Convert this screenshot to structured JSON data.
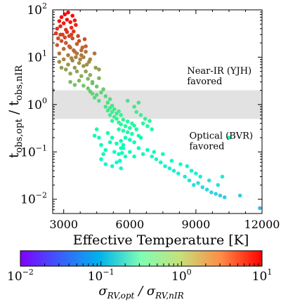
{
  "chart_data": {
    "type": "scatter",
    "xlabel": "Effective Temperature [K]",
    "ylabel": "t_obs,opt / t_obs,nIR",
    "xlim": [
      2500,
      12000
    ],
    "ylim": [
      0.005,
      100
    ],
    "xscale": "linear",
    "yscale": "log",
    "xticks": [
      3000,
      6000,
      9000,
      12000
    ],
    "yticks": [
      0.01,
      0.1,
      1,
      10,
      100
    ],
    "band": {
      "ymin": 0.5,
      "ymax": 2.0,
      "color": "#e2e2e2"
    },
    "annotations": [
      {
        "lines": [
          "Near-IR (YJH)",
          "favored"
        ],
        "x": 8600,
        "y": 4.5
      },
      {
        "lines": [
          "Optical (BVR)",
          "favored"
        ],
        "x": 8700,
        "y": 0.19
      }
    ],
    "colorbar": {
      "label": "σ_RV,opt / σ_RV,nIR",
      "scale": "log",
      "range": [
        0.01,
        10
      ],
      "colormap": "rainbow",
      "ticks": [
        0.01,
        0.1,
        1,
        10
      ],
      "tick_labels": [
        "10",
        "10",
        "10",
        "10"
      ],
      "tick_exponents": [
        "−2",
        "−1",
        "0",
        "1"
      ]
    },
    "points": [
      [
        2500,
        2.0
      ],
      [
        2650,
        32
      ],
      [
        2700,
        40
      ],
      [
        2750,
        25
      ],
      [
        2800,
        58
      ],
      [
        2850,
        45
      ],
      [
        2900,
        70
      ],
      [
        2950,
        30
      ],
      [
        3000,
        52
      ],
      [
        3050,
        80
      ],
      [
        3100,
        38
      ],
      [
        3150,
        62
      ],
      [
        3200,
        88
      ],
      [
        3250,
        28
      ],
      [
        3300,
        55
      ],
      [
        3350,
        42
      ],
      [
        3400,
        75
      ],
      [
        3450,
        35
      ],
      [
        3500,
        60
      ],
      [
        3550,
        48
      ],
      [
        2700,
        18
      ],
      [
        2800,
        12
      ],
      [
        2900,
        22
      ],
      [
        3000,
        15
      ],
      [
        3100,
        20
      ],
      [
        3200,
        11
      ],
      [
        3300,
        16
      ],
      [
        3400,
        25
      ],
      [
        3500,
        13
      ],
      [
        3600,
        19
      ],
      [
        3700,
        22
      ],
      [
        3800,
        14
      ],
      [
        3900,
        10
      ],
      [
        4000,
        17
      ],
      [
        3050,
        26
      ],
      [
        3350,
        30
      ],
      [
        3650,
        28
      ],
      [
        3950,
        24
      ],
      [
        2850,
        30
      ],
      [
        3150,
        34
      ],
      [
        2800,
        8
      ],
      [
        2900,
        6
      ],
      [
        3000,
        9
      ],
      [
        3100,
        5.5
      ],
      [
        3200,
        7
      ],
      [
        3300,
        4.5
      ],
      [
        3400,
        8.5
      ],
      [
        3500,
        6
      ],
      [
        3600,
        5
      ],
      [
        3700,
        7.5
      ],
      [
        3800,
        4
      ],
      [
        3900,
        6.5
      ],
      [
        4000,
        5
      ],
      [
        4100,
        3.5
      ],
      [
        4200,
        4.2
      ],
      [
        4300,
        3
      ],
      [
        3350,
        9.5
      ],
      [
        3750,
        9
      ],
      [
        4150,
        8
      ],
      [
        3550,
        10
      ],
      [
        3300,
        3.0
      ],
      [
        3500,
        2.6
      ],
      [
        3700,
        3.2
      ],
      [
        3900,
        2.5
      ],
      [
        4100,
        2.2
      ],
      [
        4300,
        2.8
      ],
      [
        4500,
        2.4
      ],
      [
        4600,
        3.6
      ],
      [
        4400,
        12
      ],
      [
        4200,
        1.9
      ],
      [
        4500,
        1.6
      ],
      [
        4700,
        1.8
      ],
      [
        4900,
        1.5
      ],
      [
        5100,
        1.3
      ],
      [
        4800,
        2.1
      ],
      [
        5000,
        1.1
      ],
      [
        5200,
        0.95
      ],
      [
        4600,
        1.2
      ],
      [
        4400,
        1.4
      ],
      [
        4300,
        1.7
      ],
      [
        4900,
        0.9
      ],
      [
        5000,
        0.75
      ],
      [
        5100,
        0.85
      ],
      [
        5200,
        0.7
      ],
      [
        5300,
        0.8
      ],
      [
        5400,
        0.65
      ],
      [
        5500,
        0.72
      ],
      [
        5100,
        0.6
      ],
      [
        5300,
        0.55
      ],
      [
        5600,
        0.6
      ],
      [
        5200,
        0.45
      ],
      [
        5400,
        0.5
      ],
      [
        5500,
        0.42
      ],
      [
        5600,
        0.38
      ],
      [
        5700,
        0.48
      ],
      [
        5800,
        0.35
      ],
      [
        5900,
        0.44
      ],
      [
        6000,
        0.32
      ],
      [
        6100,
        0.4
      ],
      [
        6200,
        0.36
      ],
      [
        5500,
        0.3
      ],
      [
        5700,
        0.28
      ],
      [
        5900,
        0.26
      ],
      [
        6100,
        0.24
      ],
      [
        6300,
        0.3
      ],
      [
        6400,
        0.22
      ],
      [
        6500,
        0.2
      ],
      [
        6000,
        0.18
      ],
      [
        5800,
        0.2
      ],
      [
        6200,
        0.16
      ],
      [
        6300,
        0.7
      ],
      [
        6500,
        0.6
      ],
      [
        6700,
        0.5
      ],
      [
        6900,
        0.45
      ],
      [
        6800,
        0.35
      ],
      [
        7000,
        0.3
      ],
      [
        6600,
        0.4
      ],
      [
        6200,
        0.9
      ],
      [
        5900,
        1.2
      ],
      [
        6400,
        1.1
      ],
      [
        5000,
        0.25
      ],
      [
        5200,
        0.2
      ],
      [
        5400,
        0.15
      ],
      [
        5600,
        0.12
      ],
      [
        5300,
        0.1
      ],
      [
        5500,
        0.09
      ],
      [
        5700,
        0.14
      ],
      [
        5100,
        0.16
      ],
      [
        4900,
        0.11
      ],
      [
        5800,
        0.08
      ],
      [
        4700,
        0.14
      ],
      [
        4800,
        0.09
      ],
      [
        4700,
        0.07
      ],
      [
        4900,
        0.055
      ],
      [
        5200,
        0.05
      ],
      [
        5400,
        0.06
      ],
      [
        5600,
        0.045
      ],
      [
        4600,
        0.2
      ],
      [
        4500,
        0.3
      ],
      [
        4400,
        0.22
      ],
      [
        5600,
        0.17
      ],
      [
        5700,
        0.12
      ],
      [
        5650,
        0.095
      ],
      [
        5550,
        0.065
      ],
      [
        6000,
        0.1
      ],
      [
        6200,
        0.08
      ],
      [
        6400,
        0.12
      ],
      [
        6600,
        0.09
      ],
      [
        6800,
        0.11
      ],
      [
        7000,
        0.08
      ],
      [
        7200,
        0.07
      ],
      [
        7400,
        0.06
      ],
      [
        7600,
        0.05
      ],
      [
        7800,
        0.045
      ],
      [
        8000,
        0.04
      ],
      [
        8200,
        0.035
      ],
      [
        7100,
        0.1
      ],
      [
        7500,
        0.09
      ],
      [
        7900,
        0.065
      ],
      [
        8300,
        0.055
      ],
      [
        8500,
        0.03
      ],
      [
        8700,
        0.025
      ],
      [
        8900,
        0.02
      ],
      [
        9100,
        0.022
      ],
      [
        9300,
        0.018
      ],
      [
        9500,
        0.016
      ],
      [
        9700,
        0.014
      ],
      [
        9900,
        0.013
      ],
      [
        10100,
        0.012
      ],
      [
        10300,
        0.011
      ],
      [
        8600,
        0.05
      ],
      [
        8800,
        0.04
      ],
      [
        9000,
        0.035
      ],
      [
        9200,
        0.03
      ],
      [
        9600,
        0.025
      ],
      [
        10000,
        0.02
      ],
      [
        10500,
        0.2
      ],
      [
        10200,
        0.03
      ],
      [
        11000,
        0.012
      ],
      [
        11900,
        0.0065
      ],
      [
        3600,
        12
      ],
      [
        3800,
        11
      ],
      [
        4000,
        13
      ],
      [
        4200,
        9
      ],
      [
        3450,
        14
      ],
      [
        3250,
        17
      ],
      [
        4050,
        7
      ],
      [
        3850,
        16
      ],
      [
        4600,
        5.5
      ],
      [
        4450,
        6
      ]
    ]
  }
}
